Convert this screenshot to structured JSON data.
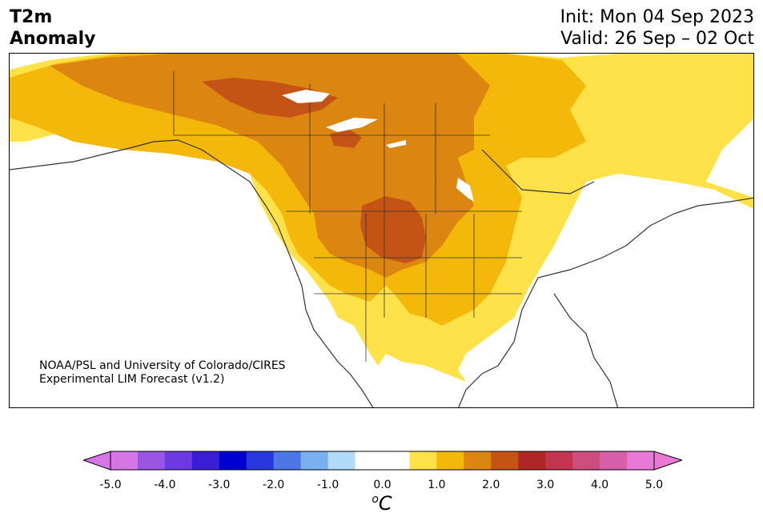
{
  "header": {
    "title_line1": "T2m",
    "title_line2": "Anomaly",
    "init": "Init: Mon 04 Sep 2023",
    "valid": "Valid: 26 Sep – 02 Oct"
  },
  "credit": {
    "line1": "NOAA/PSL and University of Colorado/CIRES",
    "line2": "Experimental LIM Forecast (v1.2)"
  },
  "colorbar": {
    "unit_base": "C",
    "unit_sup": "o",
    "min_color": "#d676e6",
    "max_color": "#e87ad6",
    "colors": [
      "#d676e6",
      "#9a56e0",
      "#6c3ae0",
      "#3a1ed6",
      "#0000d0",
      "#2838dc",
      "#4e76e6",
      "#78b0f0",
      "#b0dcfa",
      "#ffffff",
      "#ffffff",
      "#ffe24a",
      "#f3b80a",
      "#dc8612",
      "#c45416",
      "#ae2626",
      "#c23450",
      "#cc4e7e",
      "#d85eaa",
      "#e87ad6"
    ],
    "ticks": [
      "-5.0",
      "-4.0",
      "-3.0",
      "-2.0",
      "-1.0",
      "0.0",
      "1.0",
      "2.0",
      "3.0",
      "4.0",
      "5.0"
    ]
  },
  "legend_colors": {
    "anom_0_5_1": "#ffe24a",
    "anom_1_1_5": "#f3b80a",
    "anom_1_5_2": "#dc8612",
    "anom_2_2_5": "#c45416",
    "coastline": "#333333",
    "water": "#ffffff"
  }
}
